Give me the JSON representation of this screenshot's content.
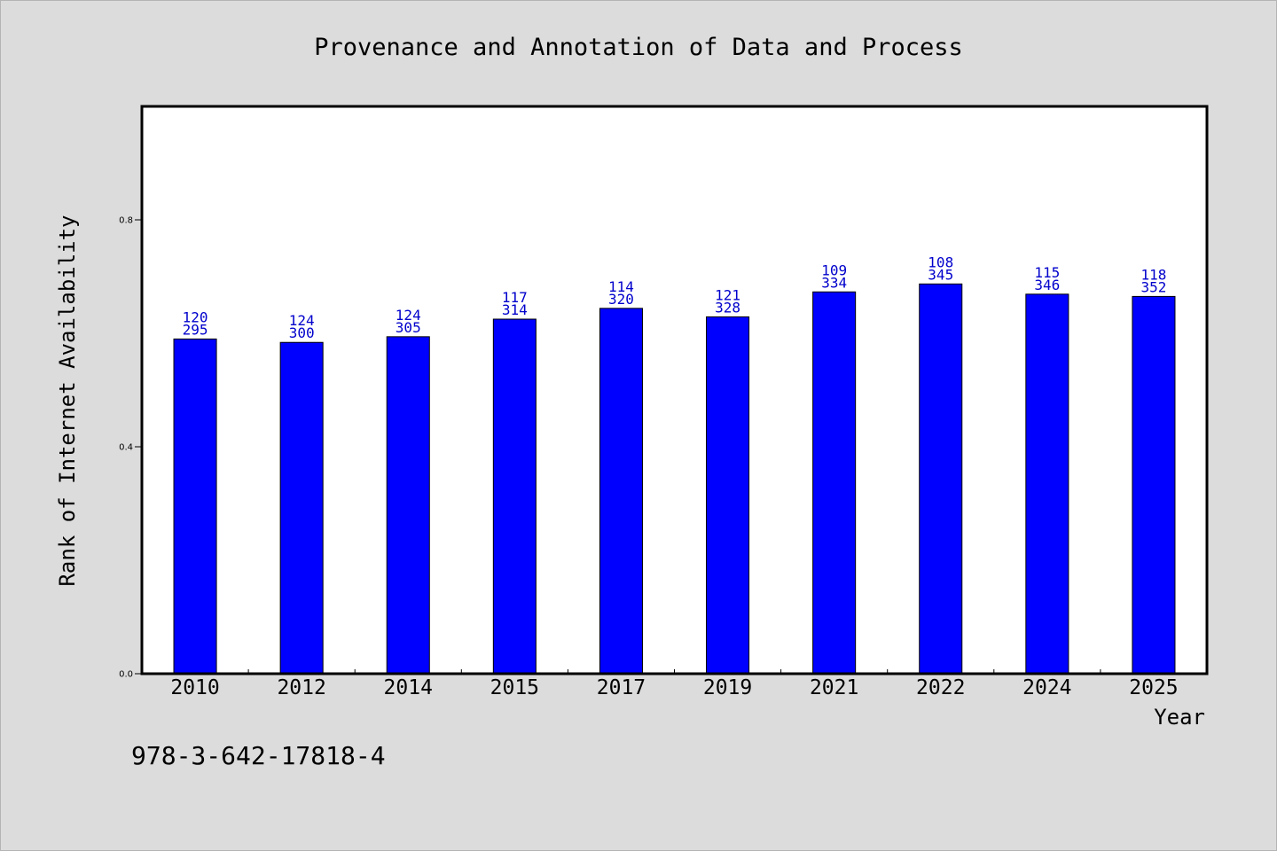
{
  "chart_data": {
    "type": "bar",
    "title": "Provenance and Annotation of Data and Process",
    "xlabel": "Year",
    "ylabel": "Rank of Internet Availability",
    "ylim": [
      0,
      1.0
    ],
    "yticks": [
      "0.0",
      "0.4",
      "0.8"
    ],
    "categories": [
      "2010",
      "2012",
      "2014",
      "2015",
      "2017",
      "2019",
      "2021",
      "2022",
      "2024",
      "2025"
    ],
    "values": [
      0.59,
      0.584,
      0.594,
      0.625,
      0.644,
      0.629,
      0.673,
      0.687,
      0.669,
      0.665
    ],
    "labels_top": [
      "120",
      "124",
      "124",
      "117",
      "114",
      "121",
      "109",
      "108",
      "115",
      "118"
    ],
    "labels_bottom": [
      "295",
      "300",
      "305",
      "314",
      "320",
      "328",
      "334",
      "345",
      "346",
      "352"
    ],
    "bar_color": "#0000ff",
    "label_color": "#0000cc",
    "grid": false
  },
  "footer": {
    "isbn": "978-3-642-17818-4"
  },
  "colors": {
    "background": "#dcdcdc",
    "plot_background": "#ffffff"
  }
}
